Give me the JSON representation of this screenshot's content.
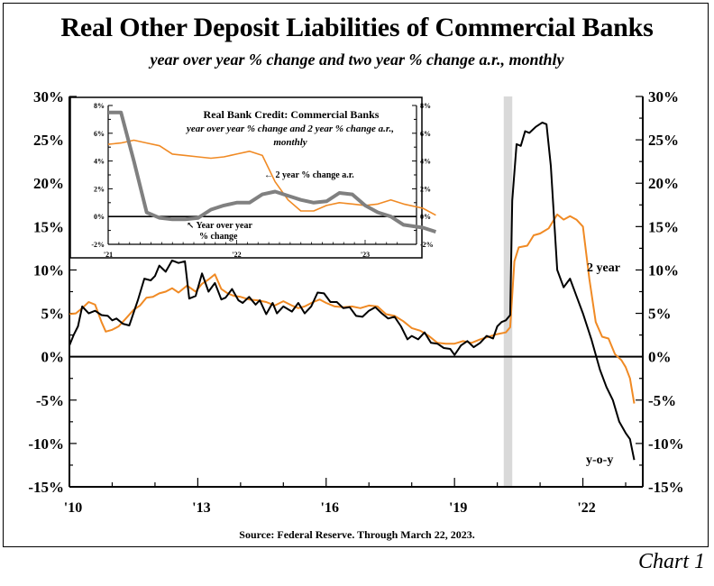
{
  "title": "Real Other Deposit Liabilities of Commercial Banks",
  "subtitle": "year over year % change and two year % change a.r., monthly",
  "source": "Source: Federal Reserve. Through March 22, 2023.",
  "chart_label": "Chart 1",
  "colors": {
    "yoy": "#000000",
    "two_year": "#f08a24",
    "recession": "#d9d9d9",
    "inset_yoy": "#808080"
  },
  "chart_data": [
    {
      "type": "line",
      "title": "Real Other Deposit Liabilities of Commercial Banks",
      "xlim": [
        2010.0,
        2023.4
      ],
      "ylim": [
        -15,
        30
      ],
      "y_ticks": [
        30,
        25,
        20,
        15,
        10,
        5,
        0,
        -5,
        -10,
        -15
      ],
      "y_tick_labels": [
        "30%",
        "25%",
        "20%",
        "15%",
        "10%",
        "5%",
        "0%",
        "-5%",
        "-10%",
        "-15%"
      ],
      "x_ticks": [
        2010,
        2013,
        2016,
        2019,
        2022
      ],
      "x_tick_labels": [
        "'10",
        "'13",
        "'16",
        "'19",
        "'22"
      ],
      "recession_band": [
        2020.15,
        2020.35
      ],
      "series": [
        {
          "name": "y-o-y",
          "color": "#000000",
          "points": [
            [
              2010.0,
              1.3
            ],
            [
              2010.1,
              2.5
            ],
            [
              2010.2,
              3.5
            ],
            [
              2010.3,
              5.8
            ],
            [
              2010.45,
              5.0
            ],
            [
              2010.6,
              5.3
            ],
            [
              2010.75,
              4.8
            ],
            [
              2010.9,
              4.7
            ],
            [
              2011.0,
              4.2
            ],
            [
              2011.1,
              4.4
            ],
            [
              2011.25,
              3.8
            ],
            [
              2011.4,
              3.6
            ],
            [
              2011.6,
              6.5
            ],
            [
              2011.75,
              9.0
            ],
            [
              2011.9,
              8.8
            ],
            [
              2012.0,
              9.3
            ],
            [
              2012.1,
              10.5
            ],
            [
              2012.25,
              9.8
            ],
            [
              2012.4,
              11.1
            ],
            [
              2012.55,
              10.8
            ],
            [
              2012.7,
              11.0
            ],
            [
              2012.8,
              6.7
            ],
            [
              2012.95,
              7.0
            ],
            [
              2013.1,
              9.6
            ],
            [
              2013.25,
              7.5
            ],
            [
              2013.4,
              8.5
            ],
            [
              2013.55,
              6.6
            ],
            [
              2013.65,
              6.8
            ],
            [
              2013.8,
              7.8
            ],
            [
              2013.95,
              6.5
            ],
            [
              2014.05,
              6.2
            ],
            [
              2014.2,
              6.9
            ],
            [
              2014.35,
              6.0
            ],
            [
              2014.45,
              6.5
            ],
            [
              2014.6,
              4.9
            ],
            [
              2014.75,
              6.2
            ],
            [
              2014.85,
              5.0
            ],
            [
              2015.0,
              5.8
            ],
            [
              2015.2,
              5.2
            ],
            [
              2015.35,
              6.2
            ],
            [
              2015.5,
              5.0
            ],
            [
              2015.65,
              5.8
            ],
            [
              2015.8,
              7.4
            ],
            [
              2015.95,
              7.3
            ],
            [
              2016.1,
              6.3
            ],
            [
              2016.25,
              6.3
            ],
            [
              2016.4,
              5.6
            ],
            [
              2016.55,
              5.7
            ],
            [
              2016.7,
              4.7
            ],
            [
              2016.85,
              4.6
            ],
            [
              2017.0,
              5.3
            ],
            [
              2017.15,
              5.7
            ],
            [
              2017.3,
              5.0
            ],
            [
              2017.45,
              4.4
            ],
            [
              2017.6,
              4.6
            ],
            [
              2017.75,
              3.5
            ],
            [
              2017.9,
              2.0
            ],
            [
              2018.0,
              2.4
            ],
            [
              2018.15,
              2.0
            ],
            [
              2018.3,
              2.8
            ],
            [
              2018.45,
              1.6
            ],
            [
              2018.6,
              1.5
            ],
            [
              2018.75,
              1.0
            ],
            [
              2018.9,
              0.9
            ],
            [
              2019.0,
              0.2
            ],
            [
              2019.15,
              1.3
            ],
            [
              2019.3,
              1.8
            ],
            [
              2019.45,
              1.1
            ],
            [
              2019.6,
              1.6
            ],
            [
              2019.75,
              2.4
            ],
            [
              2019.9,
              2.1
            ],
            [
              2020.0,
              3.5
            ],
            [
              2020.1,
              4.0
            ],
            [
              2020.2,
              4.2
            ],
            [
              2020.3,
              4.8
            ],
            [
              2020.35,
              18.0
            ],
            [
              2020.45,
              24.5
            ],
            [
              2020.55,
              24.3
            ],
            [
              2020.65,
              26.0
            ],
            [
              2020.75,
              25.8
            ],
            [
              2020.9,
              26.5
            ],
            [
              2021.05,
              27.0
            ],
            [
              2021.15,
              26.8
            ],
            [
              2021.25,
              22.0
            ],
            [
              2021.4,
              10.0
            ],
            [
              2021.55,
              8.0
            ],
            [
              2021.7,
              9.0
            ],
            [
              2021.85,
              7.0
            ],
            [
              2022.0,
              5.0
            ],
            [
              2022.2,
              2.0
            ],
            [
              2022.4,
              -1.5
            ],
            [
              2022.55,
              -3.5
            ],
            [
              2022.7,
              -5.0
            ],
            [
              2022.85,
              -7.5
            ],
            [
              2023.0,
              -8.8
            ],
            [
              2023.1,
              -9.5
            ],
            [
              2023.2,
              -11.9
            ]
          ]
        },
        {
          "name": "2 year",
          "color": "#f08a24",
          "points": [
            [
              2010.0,
              4.9
            ],
            [
              2010.15,
              5.0
            ],
            [
              2010.3,
              5.6
            ],
            [
              2010.45,
              6.3
            ],
            [
              2010.6,
              6.0
            ],
            [
              2010.75,
              4.0
            ],
            [
              2010.85,
              2.9
            ],
            [
              2011.0,
              3.1
            ],
            [
              2011.15,
              3.5
            ],
            [
              2011.3,
              4.3
            ],
            [
              2011.5,
              5.4
            ],
            [
              2011.65,
              5.9
            ],
            [
              2011.8,
              6.8
            ],
            [
              2011.95,
              6.9
            ],
            [
              2012.1,
              7.3
            ],
            [
              2012.25,
              7.5
            ],
            [
              2012.4,
              7.9
            ],
            [
              2012.55,
              7.4
            ],
            [
              2012.75,
              8.2
            ],
            [
              2012.95,
              7.5
            ],
            [
              2013.1,
              8.4
            ],
            [
              2013.25,
              8.9
            ],
            [
              2013.4,
              9.5
            ],
            [
              2013.55,
              7.8
            ],
            [
              2013.7,
              7.3
            ],
            [
              2013.85,
              7.0
            ],
            [
              2014.0,
              6.9
            ],
            [
              2014.2,
              6.6
            ],
            [
              2014.4,
              6.5
            ],
            [
              2014.6,
              6.3
            ],
            [
              2014.8,
              5.9
            ],
            [
              2015.0,
              6.4
            ],
            [
              2015.2,
              5.9
            ],
            [
              2015.35,
              5.6
            ],
            [
              2015.5,
              5.8
            ],
            [
              2015.7,
              6.3
            ],
            [
              2015.85,
              6.6
            ],
            [
              2016.0,
              6.2
            ],
            [
              2016.2,
              5.8
            ],
            [
              2016.4,
              5.7
            ],
            [
              2016.6,
              5.8
            ],
            [
              2016.8,
              5.6
            ],
            [
              2017.0,
              5.9
            ],
            [
              2017.2,
              5.8
            ],
            [
              2017.4,
              4.9
            ],
            [
              2017.6,
              4.7
            ],
            [
              2017.8,
              4.1
            ],
            [
              2018.0,
              3.3
            ],
            [
              2018.2,
              3.0
            ],
            [
              2018.4,
              2.4
            ],
            [
              2018.6,
              1.6
            ],
            [
              2018.8,
              1.5
            ],
            [
              2019.0,
              1.5
            ],
            [
              2019.2,
              1.8
            ],
            [
              2019.4,
              1.6
            ],
            [
              2019.6,
              2.0
            ],
            [
              2019.8,
              2.3
            ],
            [
              2020.0,
              2.6
            ],
            [
              2020.2,
              2.8
            ],
            [
              2020.3,
              3.4
            ],
            [
              2020.4,
              11.0
            ],
            [
              2020.5,
              12.6
            ],
            [
              2020.7,
              12.8
            ],
            [
              2020.85,
              14.0
            ],
            [
              2021.0,
              14.2
            ],
            [
              2021.2,
              14.8
            ],
            [
              2021.4,
              16.4
            ],
            [
              2021.55,
              15.8
            ],
            [
              2021.7,
              16.2
            ],
            [
              2021.85,
              15.8
            ],
            [
              2022.0,
              15.0
            ],
            [
              2022.15,
              9.0
            ],
            [
              2022.3,
              4.0
            ],
            [
              2022.45,
              2.3
            ],
            [
              2022.6,
              2.1
            ],
            [
              2022.75,
              0.3
            ],
            [
              2022.9,
              -0.4
            ],
            [
              2023.0,
              -1.2
            ],
            [
              2023.1,
              -2.5
            ],
            [
              2023.2,
              -5.4
            ]
          ]
        }
      ],
      "annotations": [
        "2 year",
        "y-o-y"
      ]
    },
    {
      "type": "line",
      "title": "Real Bank Credit: Commercial Banks",
      "subtitle": "year over year % change and 2 year % change a.r., monthly",
      "xlim": [
        2021.0,
        2023.4
      ],
      "ylim": [
        -2,
        8
      ],
      "y_ticks": [
        8,
        6,
        4,
        2,
        0,
        -2
      ],
      "y_tick_labels": [
        "8%",
        "6%",
        "4%",
        "2%",
        "0%",
        "-2%"
      ],
      "x_ticks": [
        2021,
        2022,
        2023
      ],
      "x_tick_labels": [
        "'21",
        "'22",
        "'23"
      ],
      "series": [
        {
          "name": "Year over year % change",
          "color": "#808080",
          "points": [
            [
              2021.0,
              7.5
            ],
            [
              2021.1,
              7.5
            ],
            [
              2021.2,
              4.0
            ],
            [
              2021.3,
              0.3
            ],
            [
              2021.4,
              -0.1
            ],
            [
              2021.5,
              -0.2
            ],
            [
              2021.6,
              -0.2
            ],
            [
              2021.7,
              -0.1
            ],
            [
              2021.8,
              0.5
            ],
            [
              2021.9,
              0.8
            ],
            [
              2022.0,
              1.0
            ],
            [
              2022.1,
              1.0
            ],
            [
              2022.2,
              1.6
            ],
            [
              2022.3,
              1.8
            ],
            [
              2022.4,
              1.5
            ],
            [
              2022.5,
              1.2
            ],
            [
              2022.6,
              1.0
            ],
            [
              2022.7,
              1.1
            ],
            [
              2022.8,
              1.7
            ],
            [
              2022.9,
              1.6
            ],
            [
              2023.0,
              0.8
            ],
            [
              2023.1,
              0.3
            ],
            [
              2023.2,
              0.0
            ],
            [
              2023.3,
              -0.6
            ],
            [
              2023.45,
              -0.8
            ],
            [
              2023.55,
              -1.1
            ]
          ]
        },
        {
          "name": "2 year % change a.r.",
          "color": "#f08a24",
          "points": [
            [
              2021.0,
              5.2
            ],
            [
              2021.1,
              5.3
            ],
            [
              2021.2,
              5.5
            ],
            [
              2021.3,
              5.3
            ],
            [
              2021.4,
              5.1
            ],
            [
              2021.5,
              4.5
            ],
            [
              2021.6,
              4.4
            ],
            [
              2021.7,
              4.3
            ],
            [
              2021.8,
              4.2
            ],
            [
              2021.9,
              4.3
            ],
            [
              2022.0,
              4.5
            ],
            [
              2022.1,
              4.7
            ],
            [
              2022.2,
              4.4
            ],
            [
              2022.3,
              2.5
            ],
            [
              2022.4,
              1.2
            ],
            [
              2022.5,
              0.4
            ],
            [
              2022.6,
              0.4
            ],
            [
              2022.7,
              0.8
            ],
            [
              2022.8,
              1.0
            ],
            [
              2022.9,
              0.9
            ],
            [
              2023.0,
              0.8
            ],
            [
              2023.1,
              0.9
            ],
            [
              2023.2,
              1.2
            ],
            [
              2023.3,
              0.9
            ],
            [
              2023.45,
              0.6
            ],
            [
              2023.55,
              0.1
            ]
          ]
        }
      ],
      "annotations": [
        "2 year % change a.r.",
        "Year over year",
        "% change"
      ]
    }
  ]
}
